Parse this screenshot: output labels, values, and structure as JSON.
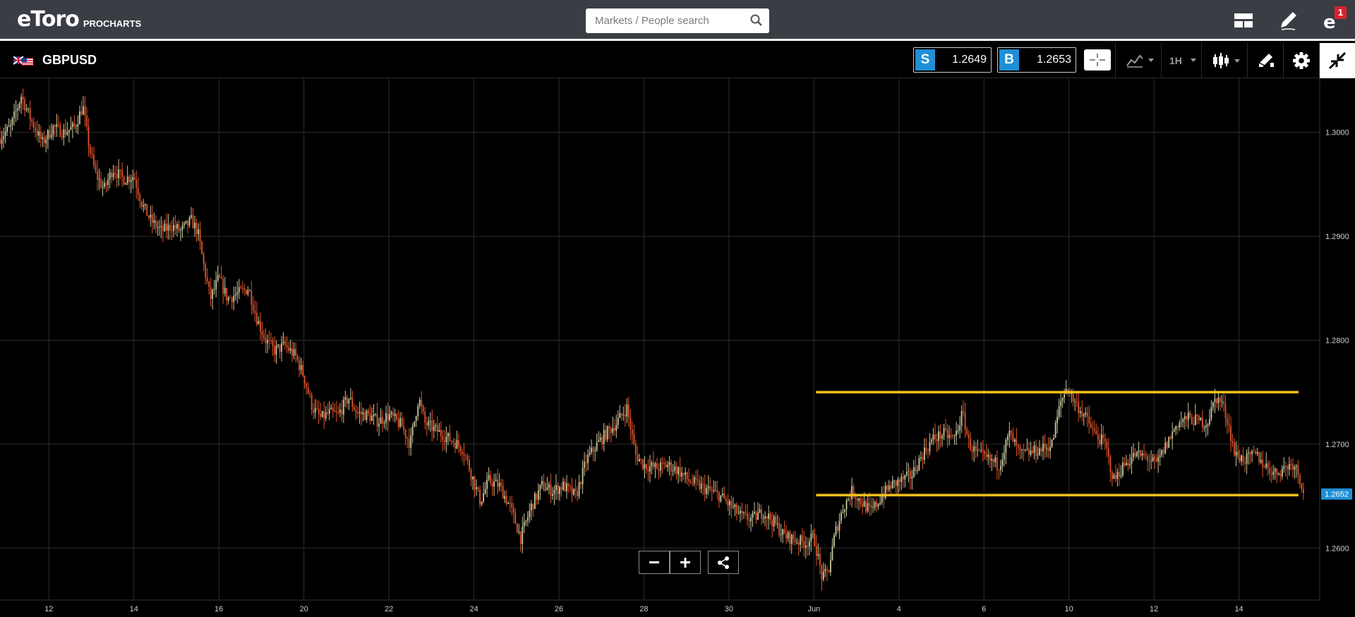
{
  "header": {
    "logo_text": "eToro",
    "logo_sub": "PROCHARTS",
    "search_placeholder": "Markets / People search",
    "notification_count": "1",
    "icons": [
      "layout-icon",
      "edit-pencil-icon",
      "etoro-profile-icon"
    ]
  },
  "instrument": {
    "symbol": "GBPUSD",
    "sell_label": "S",
    "sell_price": "1.2649",
    "buy_label": "B",
    "buy_price": "1.2653",
    "timeframe": "1H",
    "accent_color": "#1f8fd6"
  },
  "chart_data": {
    "type": "candlestick",
    "title": "GBPUSD",
    "xlabel": "",
    "ylabel": "",
    "ylim": [
      1.255,
      1.3052
    ],
    "y_ticks": [
      "1.3000",
      "1.2900",
      "1.2800",
      "1.2700",
      "1.2600"
    ],
    "y_tick_values": [
      1.3,
      1.29,
      1.28,
      1.27,
      1.26
    ],
    "x_ticks": [
      "12",
      "14",
      "16",
      "20",
      "22",
      "24",
      "26",
      "28",
      "30",
      "Jun",
      "4",
      "6",
      "10",
      "12",
      "14"
    ],
    "x_tick_days": [
      0,
      2,
      4,
      6,
      8,
      10,
      12,
      14,
      16,
      18,
      20,
      22,
      24,
      26,
      28
    ],
    "x_range_days": [
      -1.15,
      29.9
    ],
    "current_price_label": "1.2652",
    "current_price": 1.2652,
    "up_color": "#c9c9a0",
    "down_color": "#e2552a",
    "level_color": "#f5c21b",
    "horizontal_levels": [
      {
        "price": 1.275,
        "from_day": 18.05,
        "to_day": 29.4
      },
      {
        "price": 1.2651,
        "from_day": 18.05,
        "to_day": 29.4
      }
    ],
    "close_path": [
      [
        -1.15,
        1.2995
      ],
      [
        -0.9,
        1.3005
      ],
      [
        -0.65,
        1.3035
      ],
      [
        -0.4,
        1.301
      ],
      [
        -0.15,
        1.299
      ],
      [
        0.1,
        1.3005
      ],
      [
        0.35,
        1.3
      ],
      [
        0.6,
        1.3005
      ],
      [
        0.8,
        1.3025
      ],
      [
        0.95,
        1.2985
      ],
      [
        1.1,
        1.296
      ],
      [
        1.3,
        1.2945
      ],
      [
        1.5,
        1.2965
      ],
      [
        1.75,
        1.2955
      ],
      [
        2.0,
        1.2958
      ],
      [
        2.2,
        1.293
      ],
      [
        2.4,
        1.2915
      ],
      [
        2.65,
        1.2905
      ],
      [
        2.9,
        1.291
      ],
      [
        3.1,
        1.2905
      ],
      [
        3.35,
        1.2915
      ],
      [
        3.5,
        1.2905
      ],
      [
        3.65,
        1.287
      ],
      [
        3.8,
        1.284
      ],
      [
        4.0,
        1.286
      ],
      [
        4.2,
        1.284
      ],
      [
        4.45,
        1.2845
      ],
      [
        4.7,
        1.285
      ],
      [
        4.9,
        1.282
      ],
      [
        5.1,
        1.28
      ],
      [
        5.3,
        1.279
      ],
      [
        5.55,
        1.2795
      ],
      [
        5.8,
        1.2785
      ],
      [
        6.0,
        1.2765
      ],
      [
        6.2,
        1.2735
      ],
      [
        6.4,
        1.2725
      ],
      [
        6.6,
        1.273
      ],
      [
        6.8,
        1.2728
      ],
      [
        7.05,
        1.2745
      ],
      [
        7.25,
        1.273
      ],
      [
        7.5,
        1.2728
      ],
      [
        7.75,
        1.2722
      ],
      [
        8.0,
        1.2728
      ],
      [
        8.3,
        1.2718
      ],
      [
        8.5,
        1.27
      ],
      [
        8.7,
        1.2745
      ],
      [
        8.85,
        1.272
      ],
      [
        9.05,
        1.2715
      ],
      [
        9.3,
        1.2708
      ],
      [
        9.55,
        1.2702
      ],
      [
        9.75,
        1.2695
      ],
      [
        9.95,
        1.267
      ],
      [
        10.15,
        1.2645
      ],
      [
        10.35,
        1.2665
      ],
      [
        10.6,
        1.266
      ],
      [
        10.85,
        1.264
      ],
      [
        11.1,
        1.261
      ],
      [
        11.35,
        1.264
      ],
      [
        11.6,
        1.266
      ],
      [
        11.85,
        1.2655
      ],
      [
        12.1,
        1.266
      ],
      [
        12.4,
        1.265
      ],
      [
        12.65,
        1.2685
      ],
      [
        12.9,
        1.27
      ],
      [
        13.1,
        1.271
      ],
      [
        13.35,
        1.272
      ],
      [
        13.6,
        1.2735
      ],
      [
        13.8,
        1.269
      ],
      [
        14.0,
        1.268
      ],
      [
        14.3,
        1.2677
      ],
      [
        14.55,
        1.268
      ],
      [
        14.8,
        1.2675
      ],
      [
        15.05,
        1.2665
      ],
      [
        15.3,
        1.266
      ],
      [
        15.55,
        1.2655
      ],
      [
        15.8,
        1.265
      ],
      [
        16.05,
        1.264
      ],
      [
        16.3,
        1.263
      ],
      [
        16.55,
        1.2628
      ],
      [
        16.8,
        1.2635
      ],
      [
        17.05,
        1.2625
      ],
      [
        17.3,
        1.2612
      ],
      [
        17.55,
        1.2608
      ],
      [
        17.8,
        1.2605
      ],
      [
        18.0,
        1.261
      ],
      [
        18.2,
        1.257
      ],
      [
        18.35,
        1.258
      ],
      [
        18.5,
        1.2615
      ],
      [
        18.7,
        1.264
      ],
      [
        18.9,
        1.2655
      ],
      [
        19.1,
        1.2645
      ],
      [
        19.35,
        1.2635
      ],
      [
        19.6,
        1.265
      ],
      [
        19.8,
        1.266
      ],
      [
        20.05,
        1.2665
      ],
      [
        20.3,
        1.267
      ],
      [
        20.55,
        1.269
      ],
      [
        20.8,
        1.2705
      ],
      [
        21.05,
        1.271
      ],
      [
        21.3,
        1.2705
      ],
      [
        21.5,
        1.273
      ],
      [
        21.65,
        1.27
      ],
      [
        21.85,
        1.269
      ],
      [
        22.1,
        1.2685
      ],
      [
        22.35,
        1.268
      ],
      [
        22.6,
        1.271
      ],
      [
        22.85,
        1.269
      ],
      [
        23.1,
        1.2692
      ],
      [
        23.35,
        1.2695
      ],
      [
        23.6,
        1.27
      ],
      [
        23.8,
        1.274
      ],
      [
        23.95,
        1.2755
      ],
      [
        24.15,
        1.274
      ],
      [
        24.4,
        1.2725
      ],
      [
        24.6,
        1.271
      ],
      [
        24.85,
        1.27
      ],
      [
        25.05,
        1.2665
      ],
      [
        25.3,
        1.268
      ],
      [
        25.55,
        1.269
      ],
      [
        25.8,
        1.2688
      ],
      [
        26.05,
        1.268
      ],
      [
        26.3,
        1.27
      ],
      [
        26.55,
        1.272
      ],
      [
        26.8,
        1.2725
      ],
      [
        27.05,
        1.2722
      ],
      [
        27.25,
        1.272
      ],
      [
        27.45,
        1.2745
      ],
      [
        27.6,
        1.274
      ],
      [
        27.75,
        1.272
      ],
      [
        27.9,
        1.269
      ],
      [
        28.15,
        1.2685
      ],
      [
        28.4,
        1.269
      ],
      [
        28.6,
        1.268
      ],
      [
        28.85,
        1.2672
      ],
      [
        29.1,
        1.2678
      ],
      [
        29.3,
        1.2682
      ],
      [
        29.45,
        1.2665
      ],
      [
        29.55,
        1.2652
      ]
    ]
  }
}
